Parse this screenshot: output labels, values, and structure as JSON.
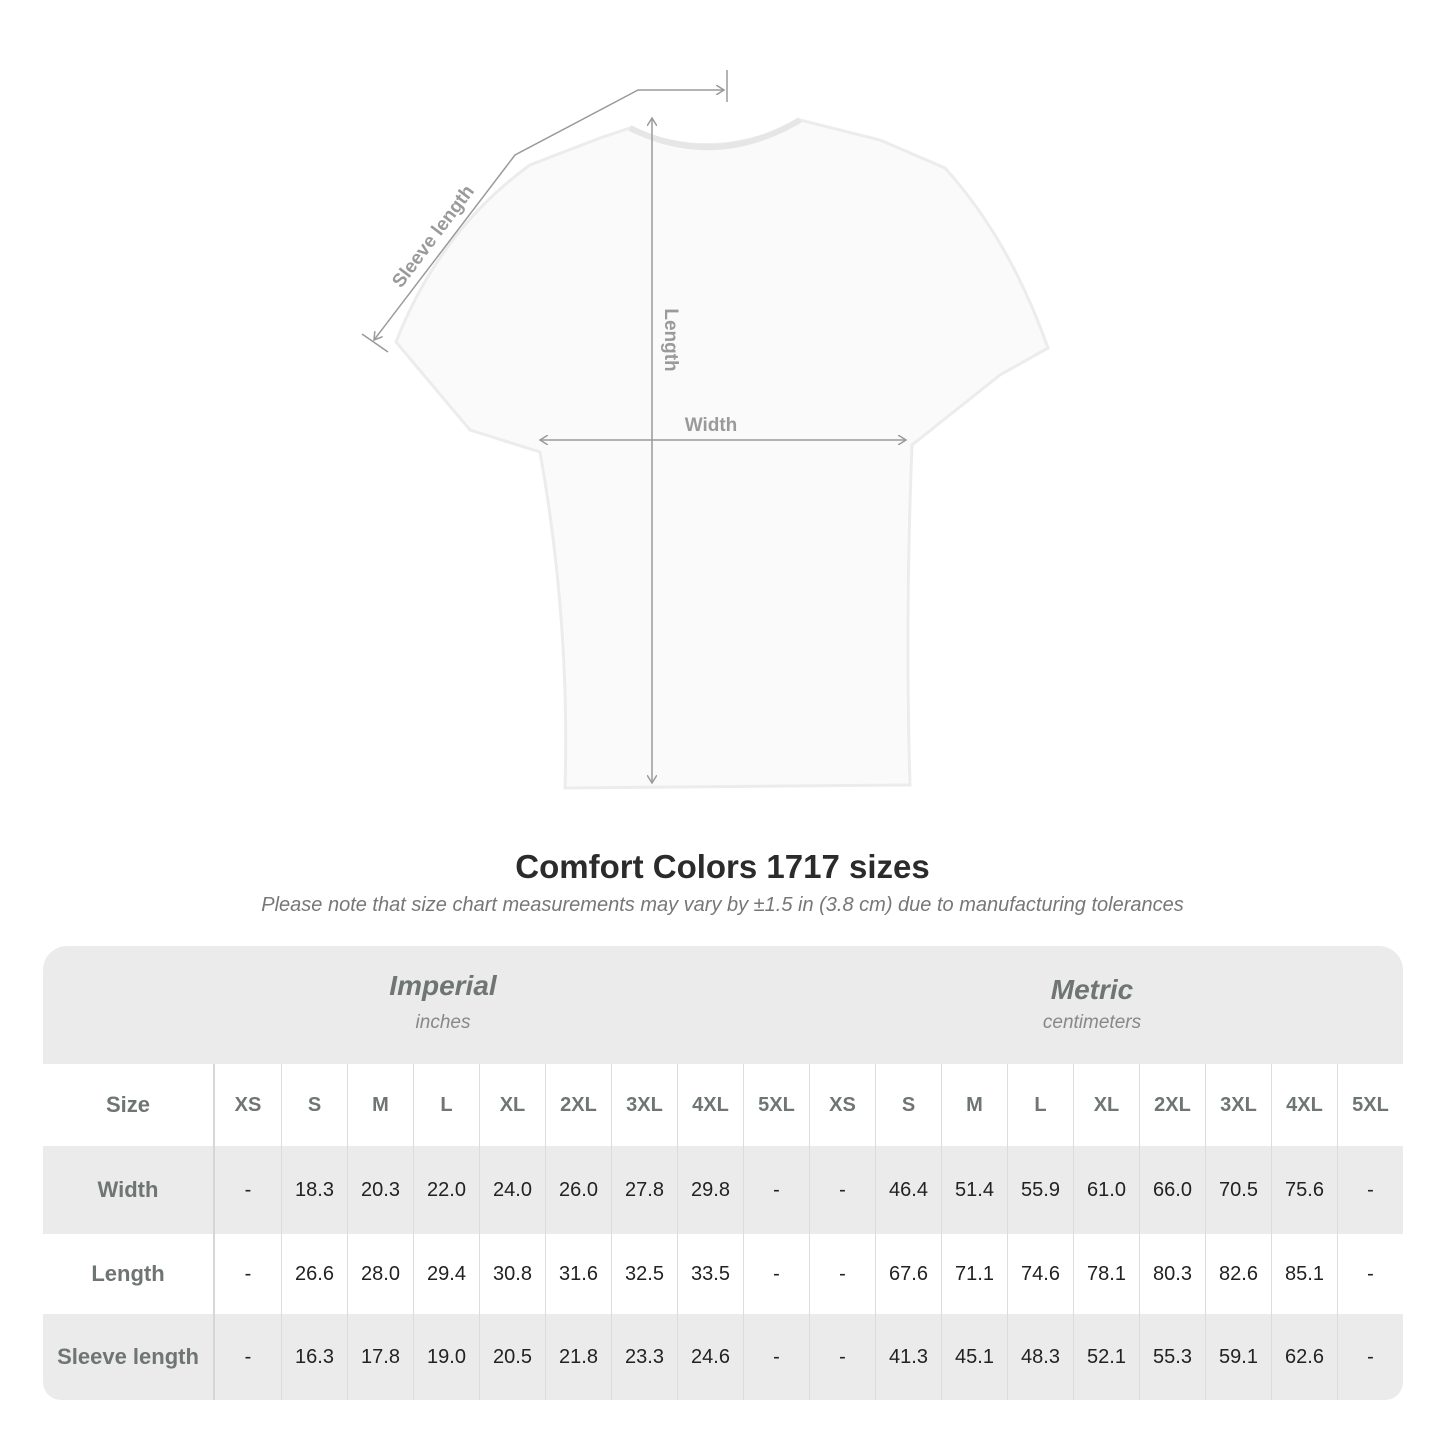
{
  "diagram": {
    "labels": {
      "sleeve": "Sleeve length",
      "length": "Length",
      "width": "Width"
    }
  },
  "title": "Comfort Colors 1717 sizes",
  "subtitle": "Please note that size chart measurements may vary by ±1.5 in (3.8 cm) due to manufacturing tolerances",
  "table": {
    "imperial": {
      "name": "Imperial",
      "unit": "inches"
    },
    "metric": {
      "name": "Metric",
      "unit": "centimeters"
    },
    "size_label": "Size",
    "sizes": [
      "XS",
      "S",
      "M",
      "L",
      "XL",
      "2XL",
      "3XL",
      "4XL",
      "5XL"
    ],
    "rows": [
      {
        "label": "Width",
        "imperial": [
          "-",
          "18.3",
          "20.3",
          "22.0",
          "24.0",
          "26.0",
          "27.8",
          "29.8",
          "-"
        ],
        "metric": [
          "-",
          "46.4",
          "51.4",
          "55.9",
          "61.0",
          "66.0",
          "70.5",
          "75.6",
          "-"
        ]
      },
      {
        "label": "Length",
        "imperial": [
          "-",
          "26.6",
          "28.0",
          "29.4",
          "30.8",
          "31.6",
          "32.5",
          "33.5",
          "-"
        ],
        "metric": [
          "-",
          "67.6",
          "71.1",
          "74.6",
          "78.1",
          "80.3",
          "82.6",
          "85.1",
          "-"
        ]
      },
      {
        "label": "Sleeve length",
        "imperial": [
          "-",
          "16.3",
          "17.8",
          "19.0",
          "20.5",
          "21.8",
          "23.3",
          "24.6",
          "-"
        ],
        "metric": [
          "-",
          "41.3",
          "45.1",
          "48.3",
          "52.1",
          "55.3",
          "59.1",
          "62.6",
          "-"
        ]
      }
    ]
  },
  "colors": {
    "band": "#ebebeb",
    "label": "#6e7572",
    "measure_line": "#9a9a9a"
  }
}
